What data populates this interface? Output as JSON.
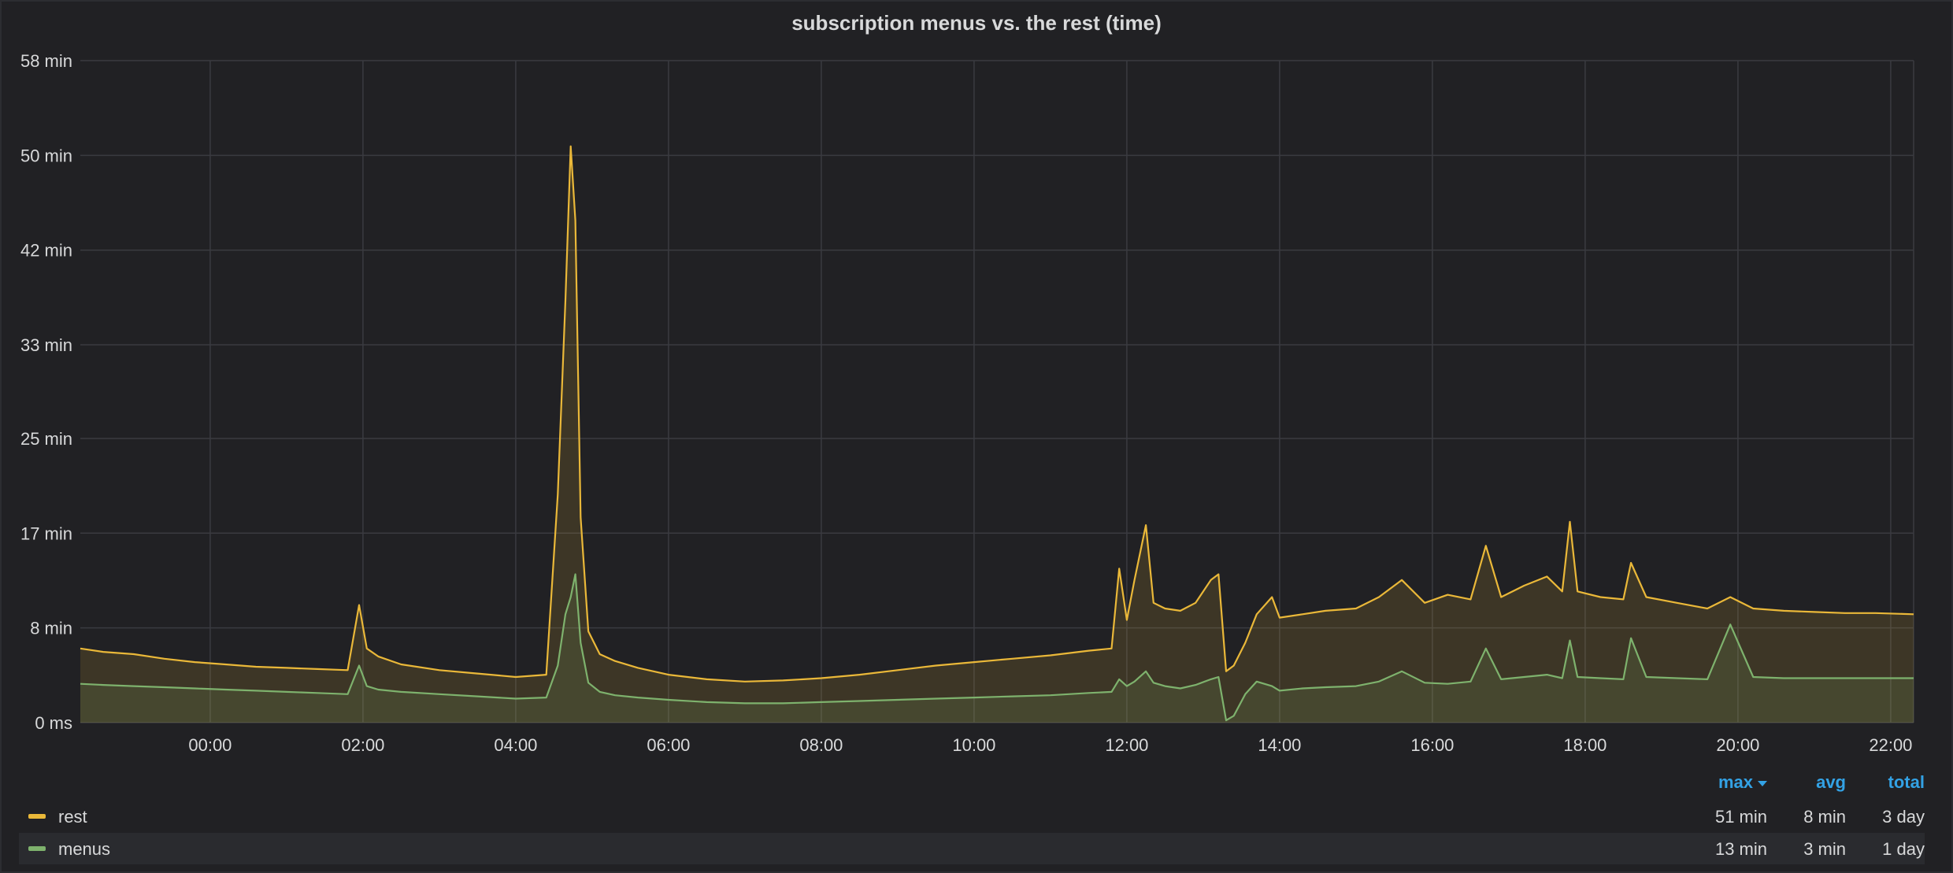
{
  "panel": {
    "title": "subscription menus vs. the rest (time)"
  },
  "colors": {
    "background": "#212124",
    "grid": "#3a3b40",
    "rest": "#eab839",
    "menus": "#7eb26d",
    "accent": "#33a2e5"
  },
  "legend": {
    "columns": [
      "max",
      "avg",
      "total"
    ],
    "sort_icon": "caret-down-icon",
    "rows": [
      {
        "name": "rest",
        "max": "51 min",
        "avg": "8 min",
        "total": "3 day"
      },
      {
        "name": "menus",
        "max": "13 min",
        "avg": "3 min",
        "total": "1 day"
      }
    ]
  },
  "chart_data": {
    "type": "area",
    "title": "subscription menus vs. the rest (time)",
    "xlabel": "",
    "ylabel": "",
    "x_unit": "hours",
    "y_unit": "minutes",
    "xlim": [
      -1.7,
      22.3
    ],
    "ylim": [
      0,
      58
    ],
    "x_ticks": [
      {
        "value": 0,
        "label": "00:00"
      },
      {
        "value": 2,
        "label": "02:00"
      },
      {
        "value": 4,
        "label": "04:00"
      },
      {
        "value": 6,
        "label": "06:00"
      },
      {
        "value": 8,
        "label": "08:00"
      },
      {
        "value": 10,
        "label": "10:00"
      },
      {
        "value": 12,
        "label": "12:00"
      },
      {
        "value": 14,
        "label": "14:00"
      },
      {
        "value": 16,
        "label": "16:00"
      },
      {
        "value": 18,
        "label": "18:00"
      },
      {
        "value": 20,
        "label": "20:00"
      },
      {
        "value": 22,
        "label": "22:00"
      }
    ],
    "y_ticks": [
      {
        "value": 0,
        "label": "0 ms"
      },
      {
        "value": 8.3,
        "label": "8 min"
      },
      {
        "value": 16.6,
        "label": "17 min"
      },
      {
        "value": 24.9,
        "label": "25 min"
      },
      {
        "value": 33.1,
        "label": "33 min"
      },
      {
        "value": 41.4,
        "label": "42 min"
      },
      {
        "value": 49.7,
        "label": "50 min"
      },
      {
        "value": 58,
        "label": "58 min"
      }
    ],
    "grid": true,
    "legend": "bottom",
    "series": [
      {
        "name": "rest",
        "color": "#eab839",
        "x": [
          -1.7,
          -1.4,
          -1.0,
          -0.6,
          -0.2,
          0.2,
          0.6,
          1.0,
          1.4,
          1.8,
          1.95,
          2.05,
          2.2,
          2.5,
          3.0,
          3.5,
          4.0,
          4.4,
          4.55,
          4.65,
          4.72,
          4.78,
          4.85,
          4.95,
          5.1,
          5.3,
          5.6,
          6.0,
          6.5,
          7.0,
          7.5,
          8.0,
          8.5,
          9.0,
          9.5,
          10.0,
          10.5,
          11.0,
          11.5,
          11.8,
          11.9,
          12.0,
          12.1,
          12.25,
          12.35,
          12.5,
          12.7,
          12.9,
          13.1,
          13.2,
          13.3,
          13.4,
          13.55,
          13.7,
          13.9,
          14.0,
          14.3,
          14.6,
          15.0,
          15.3,
          15.6,
          15.9,
          16.2,
          16.5,
          16.7,
          16.9,
          17.2,
          17.5,
          17.7,
          17.8,
          17.9,
          18.2,
          18.5,
          18.6,
          18.8,
          19.2,
          19.6,
          19.9,
          20.2,
          20.6,
          21.0,
          21.4,
          21.8,
          22.3
        ],
        "values": [
          6.5,
          6.2,
          6.0,
          5.6,
          5.3,
          5.1,
          4.9,
          4.8,
          4.7,
          4.6,
          10.3,
          6.5,
          5.8,
          5.1,
          4.6,
          4.3,
          4.0,
          4.2,
          20.0,
          37.0,
          50.5,
          44.0,
          18.0,
          8.0,
          6.0,
          5.4,
          4.8,
          4.2,
          3.8,
          3.6,
          3.7,
          3.9,
          4.2,
          4.6,
          5.0,
          5.3,
          5.6,
          5.9,
          6.3,
          6.5,
          13.5,
          9.0,
          12.5,
          17.3,
          10.5,
          10.0,
          9.8,
          10.5,
          12.5,
          13.0,
          4.5,
          5.0,
          7.0,
          9.5,
          11.0,
          9.2,
          9.5,
          9.8,
          10.0,
          11.0,
          12.5,
          10.5,
          11.2,
          10.8,
          15.5,
          11.0,
          12.0,
          12.8,
          11.5,
          17.6,
          11.5,
          11.0,
          10.8,
          14.0,
          11.0,
          10.5,
          10.0,
          11.0,
          10.0,
          9.8,
          9.7,
          9.6,
          9.6,
          9.5
        ]
      },
      {
        "name": "menus",
        "color": "#7eb26d",
        "x": [
          -1.7,
          -1.4,
          -1.0,
          -0.6,
          -0.2,
          0.2,
          0.6,
          1.0,
          1.4,
          1.8,
          1.95,
          2.05,
          2.2,
          2.5,
          3.0,
          3.5,
          4.0,
          4.4,
          4.55,
          4.65,
          4.72,
          4.78,
          4.85,
          4.95,
          5.1,
          5.3,
          5.6,
          6.0,
          6.5,
          7.0,
          7.5,
          8.0,
          8.5,
          9.0,
          9.5,
          10.0,
          10.5,
          11.0,
          11.5,
          11.8,
          11.9,
          12.0,
          12.1,
          12.25,
          12.35,
          12.5,
          12.7,
          12.9,
          13.1,
          13.2,
          13.3,
          13.4,
          13.55,
          13.7,
          13.9,
          14.0,
          14.3,
          14.6,
          15.0,
          15.3,
          15.6,
          15.9,
          16.2,
          16.5,
          16.7,
          16.9,
          17.2,
          17.5,
          17.7,
          17.8,
          17.9,
          18.2,
          18.5,
          18.6,
          18.8,
          19.2,
          19.6,
          19.9,
          20.2,
          20.6,
          21.0,
          21.4,
          21.8,
          22.3
        ],
        "values": [
          3.4,
          3.3,
          3.2,
          3.1,
          3.0,
          2.9,
          2.8,
          2.7,
          2.6,
          2.5,
          5.0,
          3.2,
          2.9,
          2.7,
          2.5,
          2.3,
          2.1,
          2.2,
          5.0,
          9.5,
          11.0,
          13.0,
          7.0,
          3.5,
          2.7,
          2.4,
          2.2,
          2.0,
          1.8,
          1.7,
          1.7,
          1.8,
          1.9,
          2.0,
          2.1,
          2.2,
          2.3,
          2.4,
          2.6,
          2.7,
          3.8,
          3.2,
          3.6,
          4.5,
          3.5,
          3.2,
          3.0,
          3.3,
          3.8,
          4.0,
          0.2,
          0.6,
          2.5,
          3.6,
          3.2,
          2.8,
          3.0,
          3.1,
          3.2,
          3.6,
          4.5,
          3.5,
          3.4,
          3.6,
          6.5,
          3.8,
          4.0,
          4.2,
          3.9,
          7.2,
          4.0,
          3.9,
          3.8,
          7.4,
          4.0,
          3.9,
          3.8,
          8.6,
          4.0,
          3.9,
          3.9,
          3.9,
          3.9,
          3.9
        ]
      }
    ]
  }
}
